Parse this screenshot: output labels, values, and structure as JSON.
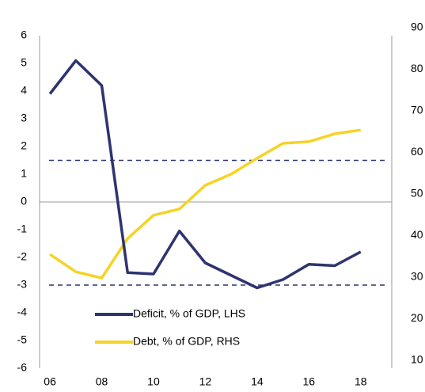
{
  "chart_data": {
    "type": "line",
    "x": [
      6,
      7,
      8,
      9,
      10,
      11,
      12,
      13,
      14,
      15,
      16,
      17,
      18
    ],
    "series": [
      {
        "name": "Deficit, % of GDP, LHS",
        "color": "#2e3470",
        "values": [
          3.9,
          5.1,
          4.2,
          -2.55,
          -2.6,
          -1.05,
          -2.2,
          -2.65,
          -3.1,
          -2.8,
          -2.25,
          -2.3,
          -1.8
        ]
      },
      {
        "name": "Debt, % of GDP, RHS",
        "color": "#f5d327",
        "axis": "y2",
        "values": [
          37.4,
          33.2,
          31.7,
          41.2,
          46.8,
          48.3,
          54,
          56.7,
          60.5,
          64.1,
          64.5,
          66.4,
          67.3
        ]
      }
    ],
    "xlim": [
      5.6,
      19.2
    ],
    "xticks": [
      {
        "value": 6,
        "label": "06"
      },
      {
        "value": 8,
        "label": "08"
      },
      10,
      12,
      14,
      16,
      18
    ],
    "ylim": [
      -6,
      6
    ],
    "yticks": [
      -6,
      -5,
      -4,
      -3,
      -2,
      -1,
      0,
      1,
      2,
      3,
      4,
      5,
      6
    ],
    "y2lim": [
      10,
      90
    ],
    "y2ticks": [
      10,
      20,
      30,
      40,
      50,
      60,
      70,
      80,
      90
    ],
    "hlines": [
      1.5,
      -3
    ],
    "hline_color": "#2e3470"
  }
}
